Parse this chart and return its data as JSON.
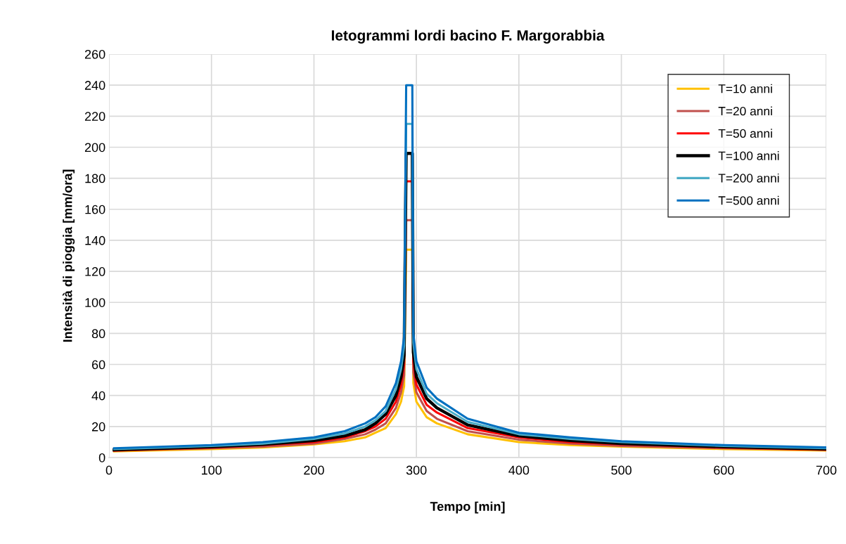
{
  "chart_data": {
    "type": "line",
    "title": "Ietogrammi lordi bacino F. Margorabbia",
    "xlabel": "Tempo [min]",
    "ylabel": "Intensità di pioggia [mm/ora]",
    "x": [
      5,
      100,
      150,
      200,
      230,
      250,
      260,
      270,
      280,
      285,
      288,
      290,
      296,
      297,
      300,
      310,
      320,
      350,
      400,
      450,
      500,
      600,
      700
    ],
    "series": [
      {
        "name": "T=10 anni",
        "color": "#ffc000",
        "values": [
          4,
          5.5,
          6.5,
          8.5,
          10.5,
          13,
          16,
          19,
          28,
          36,
          46,
          134,
          134,
          48,
          36,
          26,
          22,
          15,
          10,
          8,
          7,
          5.5,
          4.5
        ]
      },
      {
        "name": "T=20 anni",
        "color": "#c0504d",
        "values": [
          4.5,
          6,
          7,
          9,
          12,
          15,
          18,
          22,
          32,
          42,
          53,
          153,
          153,
          55,
          42,
          30,
          25,
          17,
          11.5,
          9,
          7.5,
          6,
          5
        ]
      },
      {
        "name": "T=50 anni",
        "color": "#ff0000",
        "values": [
          4.5,
          6.5,
          8,
          10,
          13,
          17,
          20,
          25,
          36,
          47,
          60,
          178,
          178,
          62,
          47,
          34,
          29,
          19,
          13,
          10,
          8.5,
          6.5,
          5
        ]
      },
      {
        "name": "T=100 anni",
        "color": "#000000",
        "values": [
          5,
          7,
          8.5,
          11,
          14,
          18,
          22,
          28,
          40,
          52,
          66,
          196,
          196,
          68,
          52,
          38,
          32,
          21,
          14,
          11,
          9,
          7,
          5.5
        ]
      },
      {
        "name": "T=200 anni",
        "color": "#4bacc6",
        "values": [
          5.5,
          7.5,
          9,
          12,
          15.5,
          20,
          24,
          30,
          44,
          57,
          72,
          215,
          215,
          74,
          57,
          41,
          35,
          23,
          15,
          12,
          10,
          7.5,
          6
        ]
      },
      {
        "name": "T=500 anni",
        "color": "#0070c0",
        "values": [
          6,
          8,
          10,
          13,
          17,
          22,
          26,
          33,
          48,
          62,
          78,
          240,
          240,
          80,
          62,
          45,
          38,
          25,
          16,
          13,
          10.5,
          8,
          6.5
        ]
      }
    ],
    "xlim": [
      0,
      700
    ],
    "xticks": [
      0,
      100,
      200,
      300,
      400,
      500,
      600,
      700
    ],
    "ylim": [
      0,
      260
    ],
    "yticks": [
      0,
      20,
      40,
      60,
      80,
      100,
      120,
      140,
      160,
      180,
      200,
      220,
      240,
      260
    ],
    "grid": true,
    "legend": "top right",
    "marker": "none",
    "line_style": "solid"
  }
}
